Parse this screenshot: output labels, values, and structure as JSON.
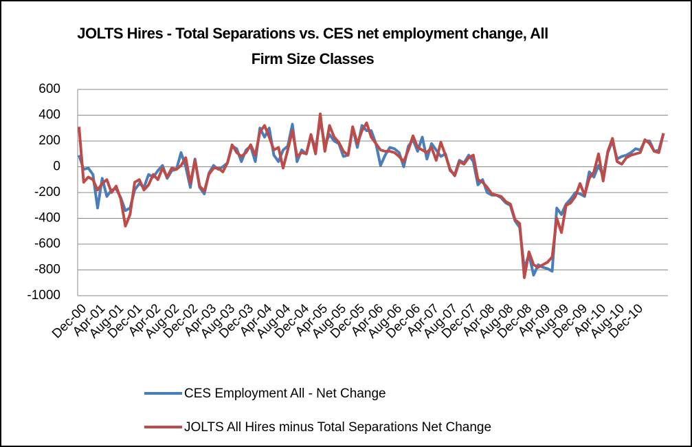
{
  "chart_data": {
    "type": "line",
    "title": "JOLTS Hires - Total Separations vs. CES net employment change, All Firm Size Classes",
    "categories": [
      "Dec-00",
      null,
      null,
      null,
      "Apr-01",
      null,
      null,
      null,
      "Aug-01",
      null,
      null,
      null,
      "Dec-01",
      null,
      null,
      null,
      "Apr-02",
      null,
      null,
      null,
      "Aug-02",
      null,
      null,
      null,
      "Dec-02",
      null,
      null,
      null,
      "Apr-03",
      null,
      null,
      null,
      "Aug-03",
      null,
      null,
      null,
      "Dec-03",
      null,
      null,
      null,
      "Apr-04",
      null,
      null,
      null,
      "Aug-04",
      null,
      null,
      null,
      "Dec-04",
      null,
      null,
      null,
      "Apr-05",
      null,
      null,
      null,
      "Aug-05",
      null,
      null,
      null,
      "Dec-05",
      null,
      null,
      null,
      "Apr-06",
      null,
      null,
      null,
      "Aug-06",
      null,
      null,
      null,
      "Dec-06",
      null,
      null,
      null,
      "Apr-07",
      null,
      null,
      null,
      "Aug-07",
      null,
      null,
      null,
      "Dec-07",
      null,
      null,
      null,
      "Apr-08",
      null,
      null,
      null,
      "Aug-08",
      null,
      null,
      null,
      "Dec-08",
      null,
      null,
      null,
      "Apr-09",
      null,
      null,
      null,
      "Aug-09",
      null,
      null,
      null,
      "Dec-09",
      null,
      null,
      null,
      "Apr-10",
      null,
      null,
      null,
      "Aug-10",
      null,
      null,
      null,
      "Dec-10",
      null,
      null,
      null,
      null,
      null,
      null
    ],
    "series": [
      {
        "name": "CES Employment  All - Net Change",
        "color": "#4a7ebb",
        "values": [
          90,
          -20,
          -10,
          -60,
          -320,
          -90,
          -230,
          -180,
          -170,
          -240,
          -340,
          -320,
          -180,
          -130,
          -160,
          -60,
          -80,
          -30,
          10,
          -90,
          -30,
          -20,
          110,
          0,
          -160,
          60,
          -160,
          -210,
          -50,
          10,
          -20,
          0,
          30,
          160,
          140,
          40,
          130,
          160,
          40,
          300,
          230,
          300,
          90,
          40,
          130,
          160,
          330,
          40,
          130,
          100,
          240,
          140,
          360,
          170,
          250,
          200,
          180,
          80,
          90,
          300,
          150,
          320,
          280,
          280,
          180,
          10,
          90,
          150,
          140,
          110,
          0,
          160,
          210,
          120,
          230,
          60,
          180,
          130,
          80,
          100,
          -30,
          -60,
          50,
          30,
          90,
          40,
          -140,
          -100,
          -200,
          -220,
          -220,
          -240,
          -280,
          -300,
          -420,
          -470,
          -790,
          -680,
          -840,
          -760,
          -780,
          -790,
          -810,
          -320,
          -370,
          -290,
          -250,
          -200,
          -210,
          -230,
          -40,
          -80,
          10,
          -70,
          110,
          200,
          60,
          80,
          90,
          110,
          140,
          130,
          200,
          200,
          120,
          130,
          260
        ]
      },
      {
        "name": "JOLTS All Hires minus Total Separations Net Change",
        "color": "#be4b48",
        "values": [
          310,
          -120,
          -80,
          -100,
          -180,
          -130,
          -100,
          -200,
          -150,
          -250,
          -460,
          -370,
          -120,
          -100,
          -180,
          -140,
          -60,
          -100,
          -10,
          -80,
          -10,
          -20,
          10,
          70,
          -130,
          50,
          -150,
          -190,
          -60,
          -10,
          -10,
          -40,
          30,
          170,
          110,
          80,
          110,
          170,
          90,
          270,
          320,
          230,
          130,
          150,
          -10,
          130,
          280,
          80,
          110,
          100,
          250,
          100,
          410,
          120,
          320,
          230,
          190,
          120,
          90,
          310,
          180,
          280,
          340,
          230,
          180,
          130,
          120,
          120,
          110,
          80,
          40,
          130,
          240,
          150,
          130,
          110,
          150,
          50,
          190,
          90,
          -20,
          -70,
          40,
          20,
          70,
          90,
          -100,
          -120,
          -160,
          -210,
          -220,
          -230,
          -270,
          -290,
          -410,
          -440,
          -860,
          -660,
          -760,
          -780,
          -760,
          -740,
          -700,
          -400,
          -510,
          -300,
          -280,
          -230,
          -130,
          -220,
          -90,
          -40,
          100,
          -110,
          120,
          220,
          40,
          20,
          70,
          90,
          100,
          110,
          210,
          180,
          120,
          110,
          260
        ]
      }
    ],
    "ylim": [
      -1000,
      600
    ],
    "yticks": [
      -1000,
      -800,
      -600,
      -400,
      -200,
      0,
      200,
      400,
      600
    ],
    "grid": true,
    "legend": "bottom"
  }
}
